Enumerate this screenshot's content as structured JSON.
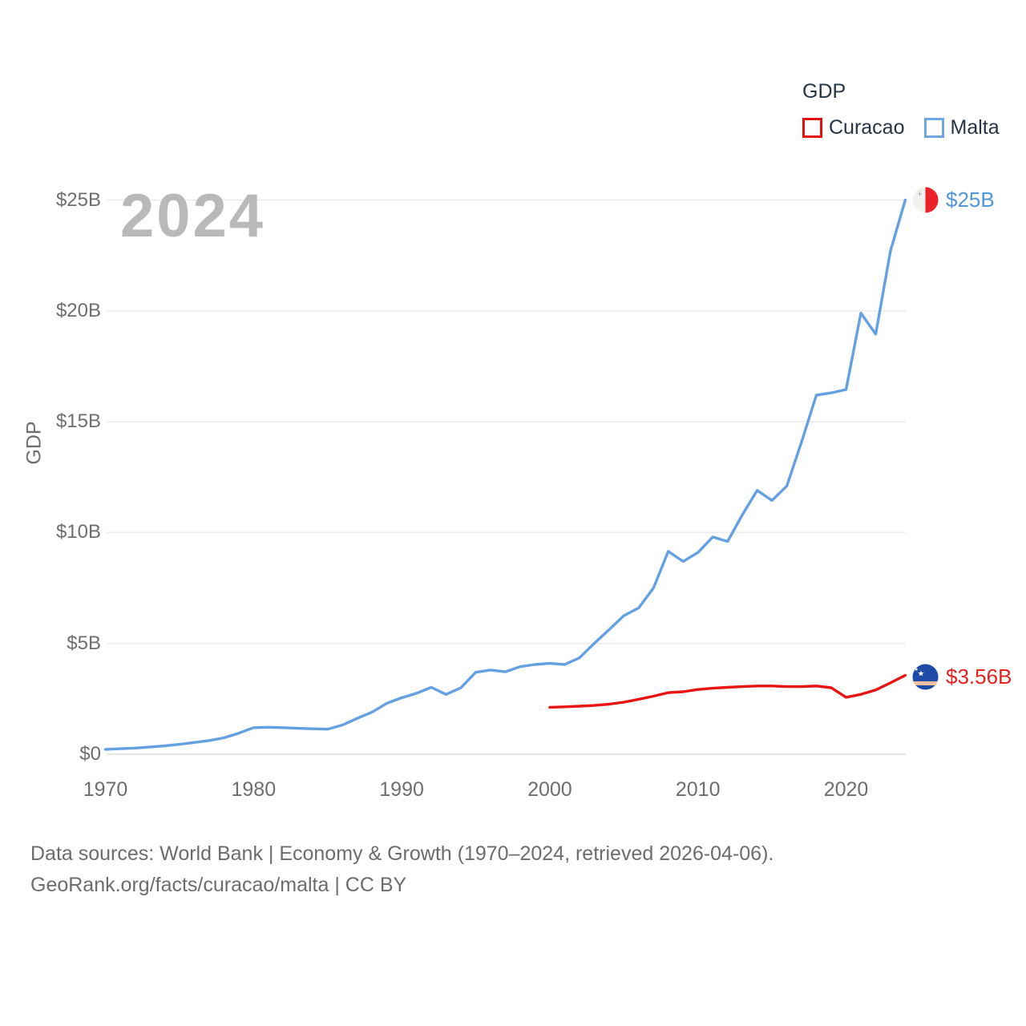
{
  "legend": {
    "title": "GDP",
    "items": [
      {
        "label": "Curacao",
        "color": "#e60f0f"
      },
      {
        "label": "Malta",
        "color": "#6ca6e4"
      }
    ]
  },
  "watermark": {
    "text": "2024"
  },
  "y_axis": {
    "title": "GDP",
    "ticks": [
      "$0",
      "$5B",
      "$10B",
      "$15B",
      "$20B",
      "$25B"
    ]
  },
  "x_axis": {
    "ticks": [
      "1970",
      "1980",
      "1990",
      "2000",
      "2010",
      "2020"
    ]
  },
  "footer": {
    "line1": "Data sources: World Bank | Economy & Growth (1970–2024, retrieved 2026-04-06).",
    "line2": "GeoRank.org/facts/curacao/malta | CC BY"
  },
  "chart_data": {
    "type": "line",
    "title": "GDP",
    "ylabel": "GDP",
    "xlabel": "",
    "x_range": [
      1970,
      2024
    ],
    "ylim": [
      0,
      25
    ],
    "y_ticks": [
      0,
      5,
      10,
      15,
      20,
      25
    ],
    "x_ticks": [
      1970,
      1980,
      1990,
      2000,
      2010,
      2020
    ],
    "grid": "horizontal",
    "legend_position": "top-right",
    "unit": "billion USD",
    "series": [
      {
        "name": "Malta",
        "color": "#64a0e2",
        "start_year": 1970,
        "end_label": "$25B",
        "end_value": 25.0,
        "values": [
          0.22,
          0.25,
          0.28,
          0.33,
          0.38,
          0.45,
          0.53,
          0.62,
          0.74,
          0.95,
          1.2,
          1.22,
          1.2,
          1.17,
          1.15,
          1.13,
          1.32,
          1.62,
          1.9,
          2.3,
          2.55,
          2.75,
          3.02,
          2.7,
          3.0,
          3.7,
          3.8,
          3.72,
          3.95,
          4.05,
          4.1,
          4.05,
          4.35,
          5.0,
          5.62,
          6.25,
          6.6,
          7.5,
          9.15,
          8.7,
          9.1,
          9.8,
          9.6,
          10.8,
          11.9,
          11.45,
          12.1,
          14.1,
          16.2,
          16.3,
          16.45,
          19.9,
          18.95,
          22.7,
          25.0
        ]
      },
      {
        "name": "Curacao",
        "color": "#e81414",
        "start_year": 2000,
        "end_label": "$3.56B",
        "end_value": 3.56,
        "values": [
          2.12,
          2.14,
          2.17,
          2.2,
          2.26,
          2.35,
          2.48,
          2.62,
          2.78,
          2.82,
          2.92,
          2.98,
          3.02,
          3.05,
          3.08,
          3.08,
          3.05,
          3.05,
          3.08,
          3.0,
          2.57,
          2.7,
          2.9,
          3.22,
          3.56
        ]
      }
    ]
  }
}
